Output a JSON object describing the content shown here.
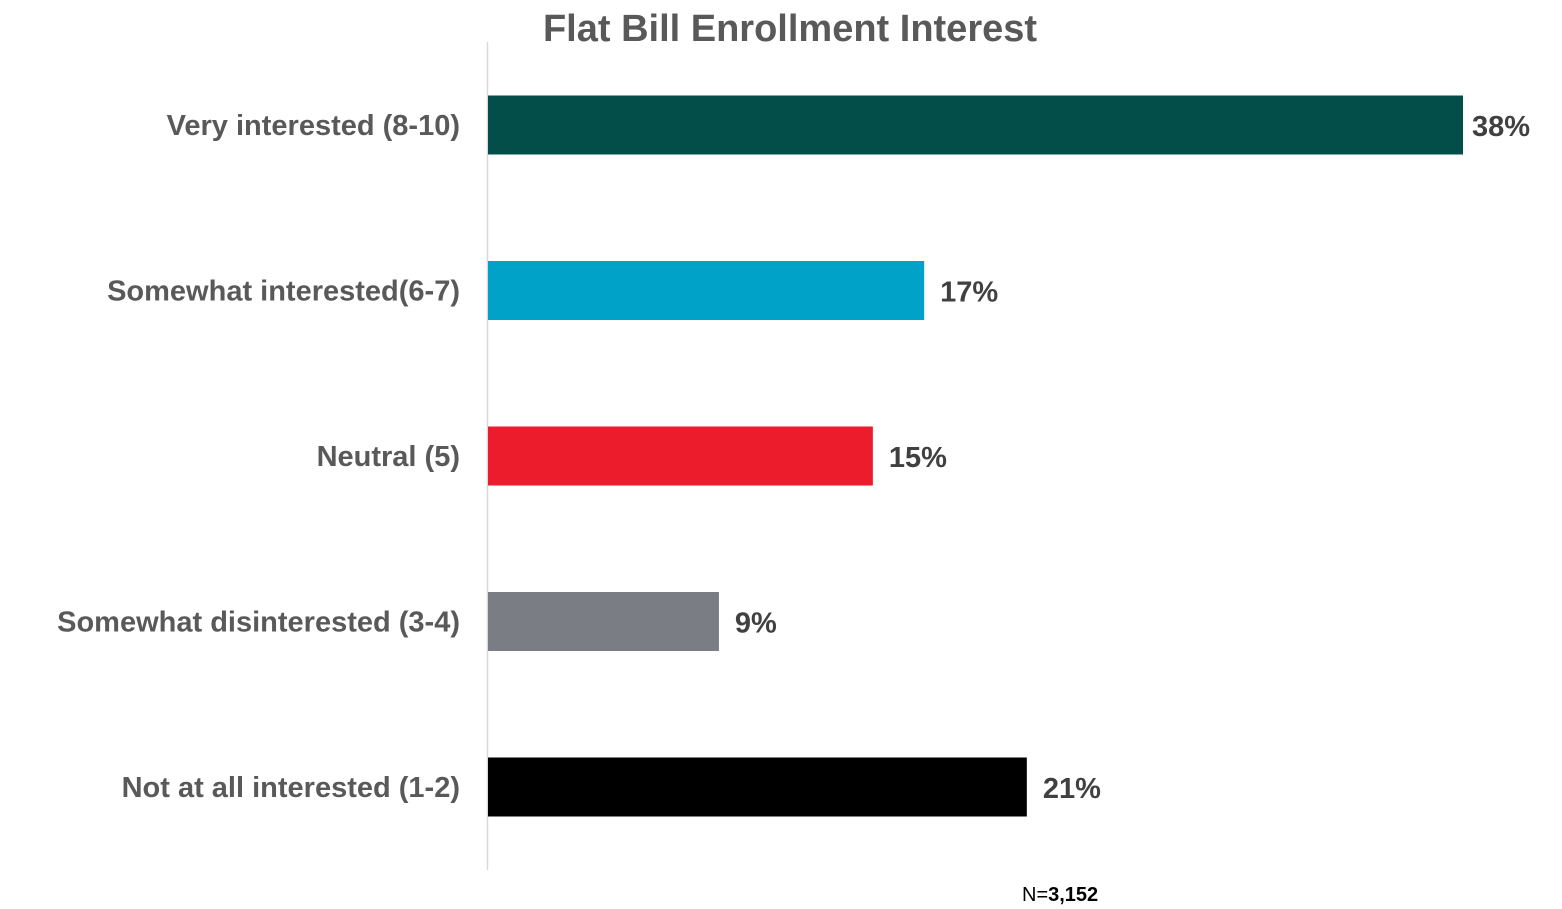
{
  "chart_data": {
    "type": "bar",
    "orientation": "horizontal",
    "title": "Flat Bill Enrollment Interest",
    "categories": [
      "Very interested (8-10)",
      "Somewhat interested(6-7)",
      "Neutral (5)",
      "Somewhat disinterested (3-4)",
      "Not at all interested (1-2)"
    ],
    "values": [
      38,
      17,
      15,
      9,
      21
    ],
    "value_labels": [
      "38%",
      "17%",
      "15%",
      "9%",
      "21%"
    ],
    "colors": [
      "#034e48",
      "#00a3c7",
      "#ec1c2d",
      "#7a7d83",
      "#000000"
    ],
    "xlim": [
      0,
      38
    ],
    "grid": false,
    "legend": "none"
  },
  "footnote": {
    "prefix": "N=",
    "value": "3,152"
  }
}
